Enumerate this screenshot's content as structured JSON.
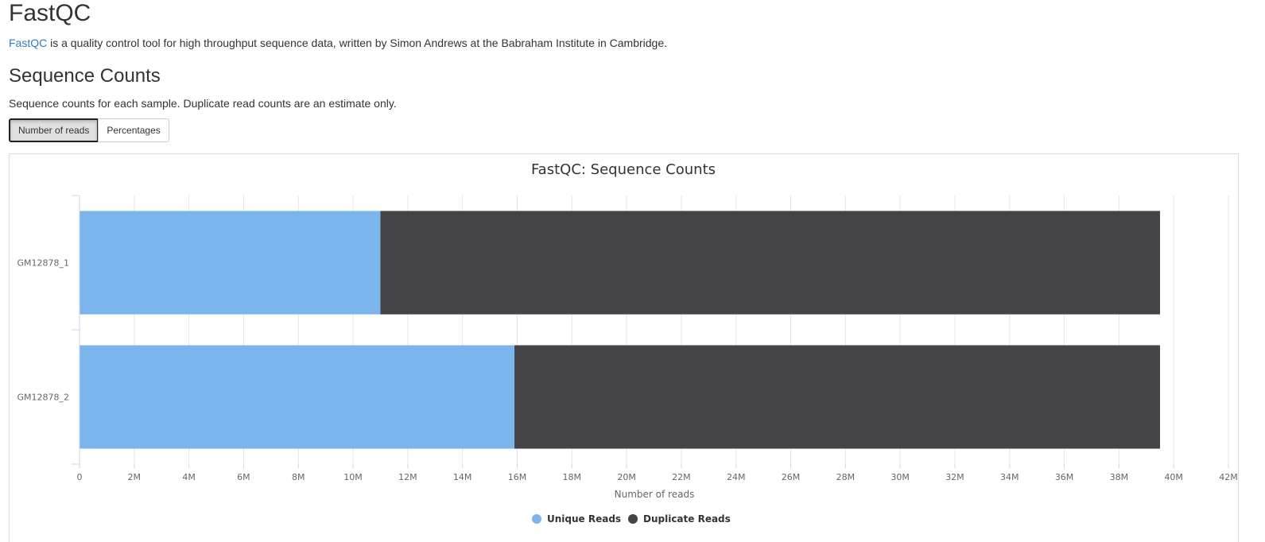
{
  "header": {
    "title": "FastQC",
    "intro_link": "FastQC",
    "intro_text": " is a quality control tool for high throughput sequence data, written by Simon Andrews at the Babraham Institute in Cambridge."
  },
  "section": {
    "title": "Sequence Counts",
    "description": "Sequence counts for each sample. Duplicate read counts are an estimate only."
  },
  "toggle": {
    "reads_label": "Number of reads",
    "percent_label": "Percentages",
    "active": "reads"
  },
  "chart_data": {
    "type": "bar",
    "orientation": "horizontal",
    "stacked": true,
    "title": "FastQC: Sequence Counts",
    "xlabel": "Number of reads",
    "ylabel": "",
    "categories": [
      "GM12878_1",
      "GM12878_2"
    ],
    "series": [
      {
        "name": "Unique Reads",
        "color": "#7cb5ec",
        "values": [
          11.0,
          15.9
        ]
      },
      {
        "name": "Duplicate Reads",
        "color": "#434348",
        "values": [
          28.5,
          23.6
        ]
      }
    ],
    "xlim": [
      0,
      42
    ],
    "xticks": [
      "0",
      "2M",
      "4M",
      "6M",
      "8M",
      "10M",
      "12M",
      "14M",
      "16M",
      "18M",
      "20M",
      "22M",
      "24M",
      "26M",
      "28M",
      "30M",
      "32M",
      "34M",
      "36M",
      "38M",
      "40M",
      "42M"
    ],
    "grid": true,
    "legend": "bottom-center"
  }
}
